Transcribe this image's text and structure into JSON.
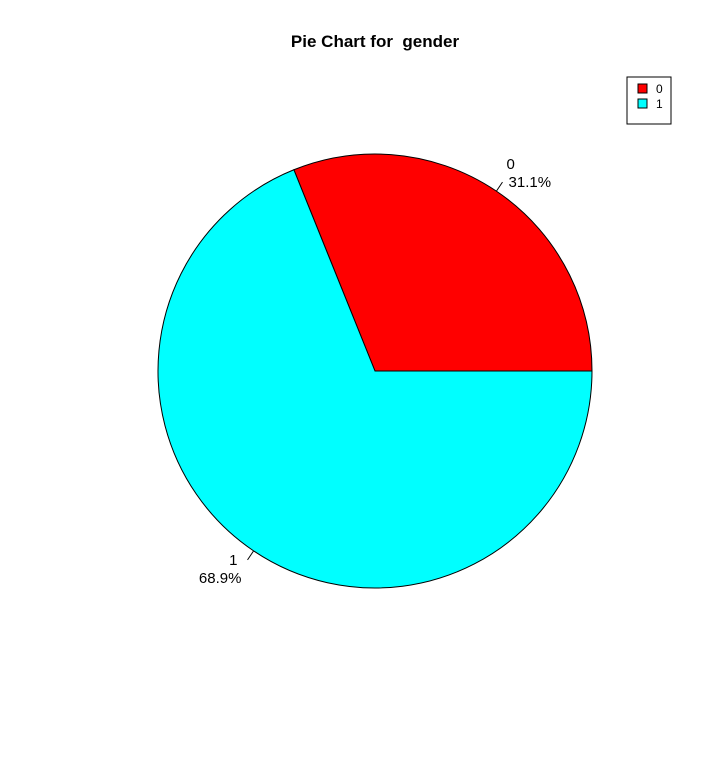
{
  "chart_data": {
    "type": "pie",
    "title": "Pie Chart for  gender",
    "categories": [
      "0",
      "1"
    ],
    "values": [
      31.1,
      68.9
    ],
    "percent_labels": [
      "31.1%",
      "68.9%"
    ],
    "colors": [
      "#ff0000",
      "#00ffff"
    ],
    "legend": {
      "placement": "top-right",
      "entries": [
        "0",
        "1"
      ]
    },
    "start_angle_deg": 0,
    "direction": "counterclockwise"
  }
}
